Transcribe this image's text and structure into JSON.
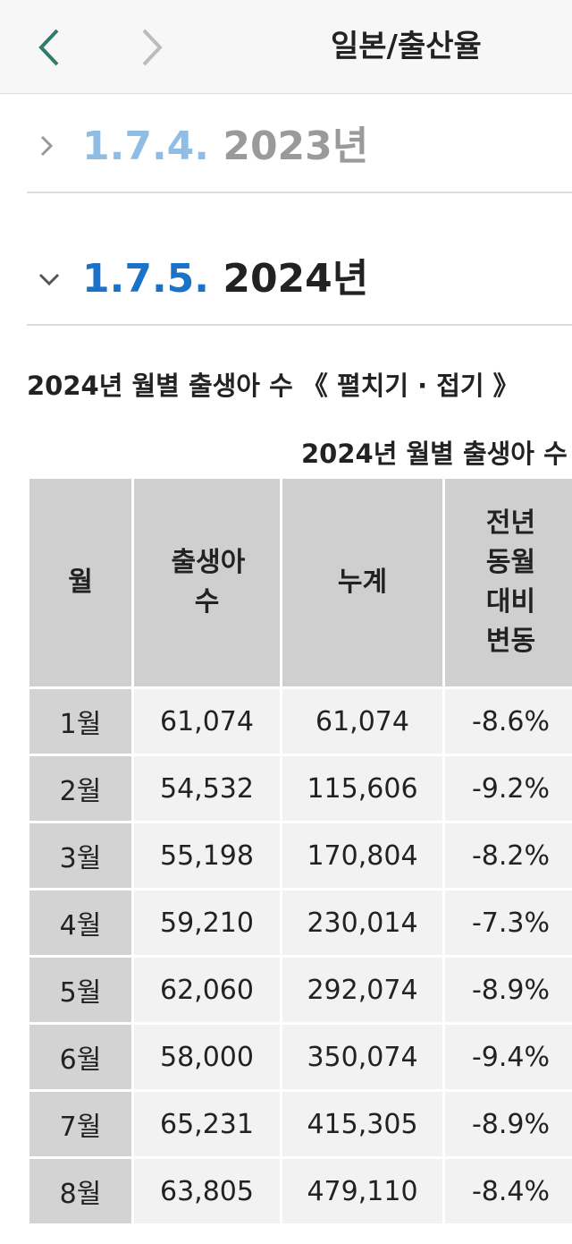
{
  "header": {
    "title": "일본/출산율"
  },
  "sections": [
    {
      "number": "1.7.4.",
      "title": "2023년"
    },
    {
      "number": "1.7.5.",
      "title": "2024년"
    }
  ],
  "caption": {
    "title": "2024년 월별 출생아 수",
    "toggle": "《 펼치기 · 접기 》"
  },
  "table": {
    "title": "2024년 월별 출생아 수",
    "headers": [
      "월",
      "출생아 수",
      "누계",
      "전년 동월 대비 변동"
    ],
    "rows": [
      [
        "1월",
        "61,074",
        "61,074",
        "-8.6%"
      ],
      [
        "2월",
        "54,532",
        "115,606",
        "-9.2%"
      ],
      [
        "3월",
        "55,198",
        "170,804",
        "-8.2%"
      ],
      [
        "4월",
        "59,210",
        "230,014",
        "-7.3%"
      ],
      [
        "5월",
        "62,060",
        "292,074",
        "-8.9%"
      ],
      [
        "6월",
        "58,000",
        "350,074",
        "-9.4%"
      ],
      [
        "7월",
        "65,231",
        "415,305",
        "-8.9%"
      ],
      [
        "8월",
        "63,805",
        "479,110",
        "-8.4%"
      ]
    ]
  }
}
